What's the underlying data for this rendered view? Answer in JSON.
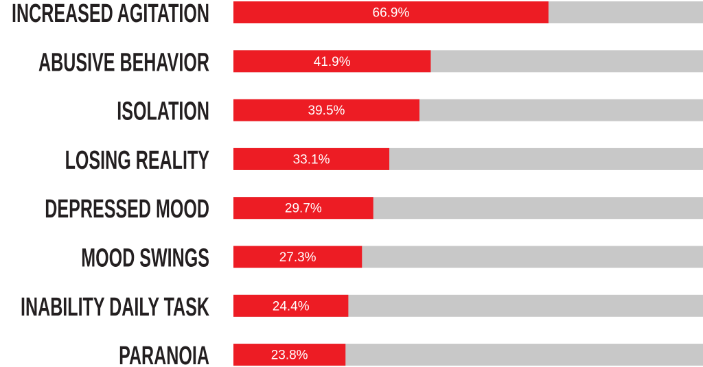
{
  "chart_data": {
    "type": "bar",
    "orientation": "horizontal",
    "categories": [
      "INCREASED AGITATION",
      "ABUSIVE BEHAVIOR",
      "ISOLATION",
      "LOSING REALITY",
      "DEPRESSED MOOD",
      "MOOD SWINGS",
      "INABILITY DAILY TASK",
      "PARANOIA"
    ],
    "values": [
      66.9,
      41.9,
      39.5,
      33.1,
      29.7,
      27.3,
      24.4,
      23.8
    ],
    "value_labels": [
      "66.9%",
      "41.9%",
      "39.5%",
      "33.1%",
      "29.7%",
      "27.3%",
      "24.4%",
      "23.8%"
    ],
    "color": "#ed1c24",
    "track_color": "#c8c8c8",
    "xlim": [
      0,
      100
    ]
  }
}
